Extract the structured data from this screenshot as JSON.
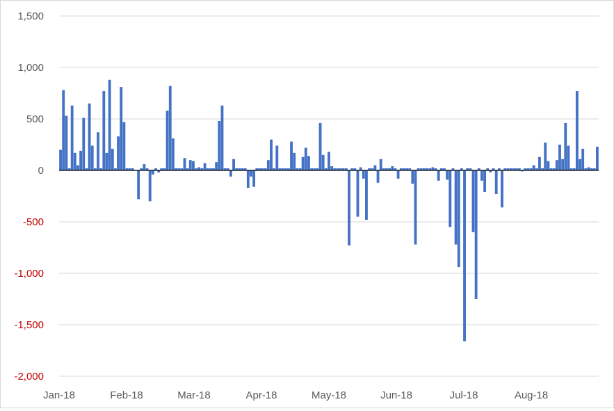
{
  "chart_data": {
    "type": "bar",
    "title": "",
    "xlabel": "",
    "ylabel": "",
    "ylim": [
      -2000,
      1500
    ],
    "y_ticks": [
      {
        "value": 1500,
        "label": "1,500"
      },
      {
        "value": 1000,
        "label": "1,000"
      },
      {
        "value": 500,
        "label": "500"
      },
      {
        "value": 0,
        "label": "0"
      },
      {
        "value": -500,
        "label": "-500"
      },
      {
        "value": -1000,
        "label": "-1,000"
      },
      {
        "value": -1500,
        "label": "-1,500"
      },
      {
        "value": -2000,
        "label": "-2,000"
      }
    ],
    "x_ticks": [
      "Jan-18",
      "Feb-18",
      "Mar-18",
      "Apr-18",
      "May-18",
      "Jun-18",
      "Jul-18",
      "Aug-18"
    ],
    "grid": true,
    "legend": "none",
    "colors": {
      "bar": "#4472c4",
      "negative_label": "#c00000",
      "positive_label": "#595959",
      "grid": "#d9d9d9",
      "axis": "#000000"
    },
    "series": [
      {
        "values": [
          200,
          780,
          530,
          20,
          630,
          170,
          50,
          190,
          510,
          20,
          650,
          240,
          20,
          370,
          20,
          770,
          170,
          880,
          210,
          20,
          330,
          810,
          470,
          20,
          20,
          20,
          -5,
          -280,
          20,
          60,
          20,
          -300,
          -40,
          20,
          -20,
          20,
          20,
          580,
          820,
          310,
          20,
          20,
          20,
          120,
          20,
          100,
          90,
          20,
          30,
          20,
          70,
          20,
          20,
          20,
          80,
          480,
          630,
          20,
          20,
          -60,
          110,
          20,
          20,
          20,
          20,
          -170,
          -60,
          -160,
          20,
          20,
          20,
          20,
          100,
          300,
          20,
          240,
          20,
          20,
          20,
          20,
          280,
          170,
          20,
          20,
          130,
          220,
          140,
          20,
          20,
          20,
          460,
          150,
          20,
          180,
          40,
          20,
          20,
          20,
          20,
          20,
          -730,
          20,
          20,
          -450,
          30,
          -80,
          -480,
          20,
          20,
          50,
          -120,
          110,
          20,
          20,
          20,
          40,
          20,
          -80,
          20,
          20,
          20,
          20,
          -130,
          -720,
          20,
          20,
          20,
          20,
          20,
          30,
          20,
          -100,
          20,
          20,
          -90,
          -550,
          20,
          -720,
          -940,
          20,
          -1660,
          20,
          20,
          -600,
          -1250,
          20,
          -100,
          -210,
          20,
          -20,
          20,
          -230,
          20,
          -360,
          20,
          20,
          20,
          20,
          20,
          20,
          -10,
          20,
          20,
          20,
          50,
          20,
          130,
          20,
          270,
          90,
          20,
          20,
          100,
          250,
          110,
          460,
          240,
          20,
          20,
          770,
          110,
          210,
          20,
          30,
          20,
          20,
          230
        ]
      }
    ]
  }
}
